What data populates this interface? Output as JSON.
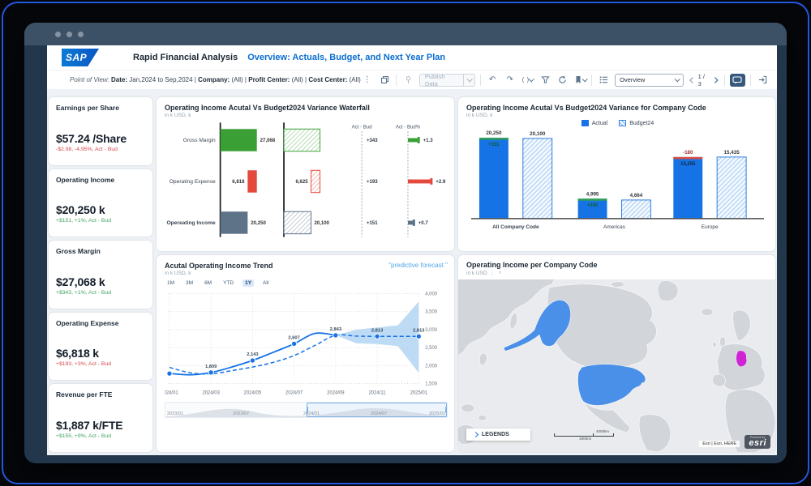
{
  "header": {
    "logo": "SAP",
    "app_title": "Rapid Financial Analysis",
    "page_title": "Overview: Actuals, Budget, and Next Year Plan"
  },
  "pov": {
    "prefix": "Point of View:",
    "date_label": "Date:",
    "date_value": "Jan,2024 to Sep,2024",
    "sep1": "|",
    "company_label": "Company:",
    "company_value": "(All)",
    "sep2": "|",
    "profit_center_label": "Profit Center:",
    "profit_center_value": "(All)",
    "sep3": "|",
    "cost_center_label": "Cost Center:",
    "cost_center_value": "(All)"
  },
  "toolbar": {
    "publish_label": "Publish Data",
    "formula_glyph": "( )",
    "view_select_value": "Overview",
    "page_indicator": "1 / 3"
  },
  "kpis": [
    {
      "title": "Earnings per Share",
      "value": "$57.24 /Share",
      "delta": "-$2.98, -4.95%, Act - Bud",
      "trend": "negative"
    },
    {
      "title": "Operating Income",
      "value": "$20,250 k",
      "delta": "+$151, +1%, Act - Bud",
      "trend": "positive"
    },
    {
      "title": "Gross Margin",
      "value": "$27,068 k",
      "delta": "+$343, +1%, Act - Bud",
      "trend": "positive"
    },
    {
      "title": "Operating Expense",
      "value": "$6,818 k",
      "delta": "+$193, +3%, Act - Bud",
      "trend": "negative"
    },
    {
      "title": "Revenue per FTE",
      "value": "$1,887 k/FTE",
      "delta": "+$155, +9%, Act - Bud",
      "trend": "positive"
    }
  ],
  "chart_data": [
    {
      "type": "waterfall",
      "title": "Operating Income Acutal Vs Budget2024 Variance Waterfall",
      "subtitle": "in k USD, k",
      "col_headers": [
        "Act - Bud",
        "Act - Bud%"
      ],
      "rows": [
        {
          "category": "Gross Margin",
          "actual": 27068,
          "actual_label": "27,068",
          "budget_label": "",
          "variance_label": "+343",
          "variance_pct_label": "+1.3",
          "color": "#3AA035",
          "emphasis": false
        },
        {
          "category": "Operating Expense",
          "actual": 6818,
          "actual_label": "6,818",
          "budget_label": "6,625",
          "variance_label": "+193",
          "variance_pct_label": "+2.9",
          "color": "#E4493D",
          "emphasis": false
        },
        {
          "category": "Opereating Income",
          "actual": 20250,
          "actual_label": "20,250",
          "budget_label": "20,100",
          "variance_label": "+151",
          "variance_pct_label": "+0.7",
          "color": "#5E7288",
          "emphasis": true
        }
      ]
    },
    {
      "type": "bar",
      "title": "Operating Income Acutal Vs Budget2024 Variance for Company Code",
      "subtitle": "in k USD, k",
      "legend": [
        "Actual",
        "Budget24"
      ],
      "categories": [
        "All Company Code",
        "Americas",
        "Europe"
      ],
      "ylim": [
        0,
        22000
      ],
      "series": [
        {
          "name": "Actual",
          "values": [
            20250,
            4995,
            15255
          ],
          "top_labels": [
            "20,250",
            "4,995",
            "-180"
          ],
          "inner_labels": [
            "+151",
            "+330",
            "15,255"
          ],
          "variance_labels": [
            "+151",
            "+330",
            "-180"
          ]
        },
        {
          "name": "Budget24",
          "values": [
            20100,
            4664,
            15435
          ],
          "top_labels": [
            "20,100",
            "4,664",
            "15,435"
          ]
        }
      ]
    },
    {
      "type": "line",
      "title": "Acutal Operating Income Trend",
      "subtitle": "in k USD, k",
      "annotation": "\"predictive forecast \"",
      "range_buttons": [
        "1M",
        "3M",
        "6M",
        "YTD",
        "1Y",
        "All"
      ],
      "active_range": "1Y",
      "x_ticks": [
        "2024/01",
        "2024/03",
        "2024/05",
        "2024/07",
        "2024/09",
        "2024/11",
        "2025/01"
      ],
      "y_ticks": [
        "4,000",
        "3,500",
        "3,000",
        "2,500",
        "2,000",
        "1,500"
      ],
      "ylim": [
        1500,
        4000
      ],
      "series": [
        {
          "name": "Actual",
          "style": "solid",
          "x": [
            0,
            1,
            2,
            3,
            4,
            5,
            6,
            7,
            8
          ],
          "values": [
            1780,
            1745,
            1809,
            1960,
            2143,
            2370,
            2607,
            2895,
            2843
          ]
        },
        {
          "name": "Forecast",
          "style": "dashed",
          "x": [
            0,
            1,
            2,
            3,
            4,
            5,
            6,
            7,
            8,
            9,
            10,
            11,
            12
          ],
          "values": [
            1950,
            1800,
            1770,
            1860,
            1960,
            2090,
            2280,
            2560,
            2843,
            2820,
            2813,
            2813,
            2813
          ]
        }
      ],
      "markers": [
        {
          "x": 0,
          "v": 1780,
          "label": ""
        },
        {
          "x": 2,
          "v": 1809,
          "label": "1,809"
        },
        {
          "x": 4,
          "v": 2143,
          "label": "2,143"
        },
        {
          "x": 6,
          "v": 2607,
          "label": "2,607"
        },
        {
          "x": 8,
          "v": 2843,
          "label": "2,843"
        },
        {
          "x": 10,
          "v": 2813,
          "label": "2,813"
        },
        {
          "x": 12,
          "v": 2813,
          "label": "2,813"
        }
      ],
      "band": {
        "x": [
          8,
          9,
          10,
          11,
          12
        ],
        "upper": [
          2843,
          3000,
          3060,
          3120,
          3780
        ],
        "lower": [
          2843,
          2620,
          2600,
          2540,
          1800
        ]
      },
      "navigator": {
        "labels": [
          "2023/01",
          "2023/07",
          "2024/01",
          "2024/07",
          "2025/01"
        ],
        "window_start": 0.5,
        "window_end": 1.0
      }
    },
    {
      "type": "map",
      "title": "Operating Income per Company Code",
      "subtitle": "in k USD",
      "legend_button": "LEGENDS",
      "scale_km": "4000km",
      "scale_mi": "2000mi",
      "attribution": "Esri | Esri, HERE",
      "logo_powered": "Powered by",
      "logo_text": "esri",
      "highlights": [
        {
          "region": "United States",
          "color": "#4a8fe8"
        },
        {
          "region": "Germany",
          "color": "#cf24d4"
        }
      ]
    }
  ],
  "colors": {
    "accent_blue": "#0a6ed1",
    "bar_blue": "#1673e6",
    "budget_hatch": "#8ec1f0",
    "positive_green": "#3fa45b",
    "negative_red": "#d5474a",
    "waterfall_green": "#3AA035",
    "waterfall_red": "#E4493D",
    "waterfall_slate": "#5E7288",
    "band_blue": "#aed2f3",
    "map_us": "#4a8fe8",
    "map_germany": "#cf24d4"
  }
}
